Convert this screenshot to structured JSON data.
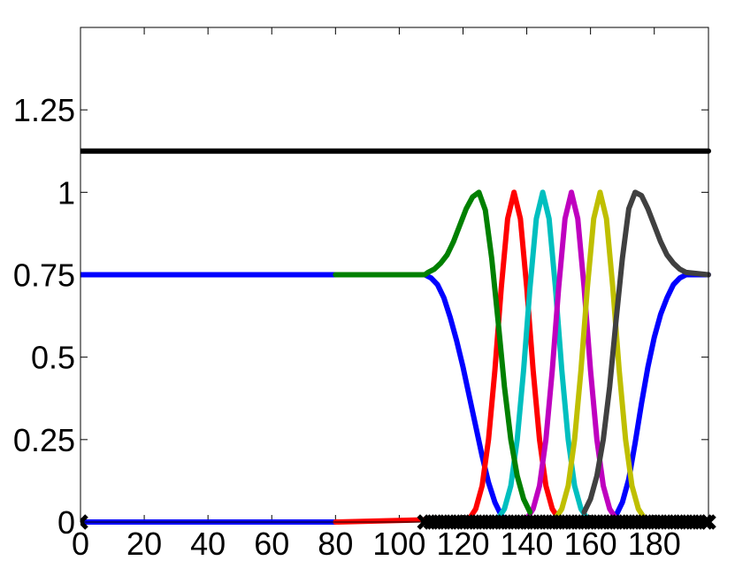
{
  "chart_data": {
    "type": "line",
    "xlim": [
      0,
      197
    ],
    "ylim": [
      0,
      1.5
    ],
    "xticks": [
      0,
      20,
      40,
      60,
      80,
      100,
      120,
      140,
      160,
      180
    ],
    "yticks": [
      0,
      0.25,
      0.5,
      0.75,
      1,
      1.25
    ],
    "series": [
      {
        "color": "#000000",
        "x": [
          0,
          197
        ],
        "values": [
          1.125,
          1.125
        ]
      },
      {
        "color": "#0000ff",
        "x": [
          0,
          108,
          110,
          112,
          114,
          116,
          118,
          120,
          122,
          124,
          126,
          128,
          130,
          132,
          134,
          166,
          168,
          170,
          172,
          174,
          176,
          178,
          180,
          182,
          184,
          186,
          188,
          190,
          197
        ],
        "values": [
          0.75,
          0.75,
          0.74,
          0.72,
          0.68,
          0.62,
          0.55,
          0.47,
          0.38,
          0.29,
          0.2,
          0.12,
          0.06,
          0.02,
          0,
          0,
          0.02,
          0.06,
          0.13,
          0.24,
          0.36,
          0.47,
          0.56,
          0.63,
          0.68,
          0.72,
          0.74,
          0.75,
          0.75
        ]
      },
      {
        "color": "#0000ff",
        "x": [
          0,
          80
        ],
        "values": [
          0,
          0
        ]
      },
      {
        "color": "#ff0000",
        "x": [
          80,
          122,
          124,
          126,
          128,
          130,
          132,
          134,
          136,
          138,
          140,
          142,
          144,
          146,
          148,
          150
        ],
        "values": [
          0,
          0.01,
          0.04,
          0.11,
          0.25,
          0.46,
          0.71,
          0.92,
          1,
          0.92,
          0.71,
          0.46,
          0.25,
          0.11,
          0.04,
          0.01
        ]
      },
      {
        "color": "#00bfbf",
        "x": [
          131,
          133,
          135,
          137,
          139,
          141,
          143,
          145,
          147,
          149,
          151,
          153,
          155,
          157,
          159
        ],
        "values": [
          0.01,
          0.04,
          0.11,
          0.25,
          0.46,
          0.71,
          0.92,
          1,
          0.92,
          0.71,
          0.46,
          0.25,
          0.11,
          0.04,
          0.01
        ]
      },
      {
        "color": "#bf00bf",
        "x": [
          140,
          142,
          144,
          146,
          148,
          150,
          152,
          154,
          156,
          158,
          160,
          162,
          164,
          166,
          168
        ],
        "values": [
          0.01,
          0.04,
          0.11,
          0.25,
          0.46,
          0.71,
          0.92,
          1,
          0.92,
          0.71,
          0.46,
          0.25,
          0.11,
          0.04,
          0.01
        ]
      },
      {
        "color": "#bfbf00",
        "x": [
          149,
          151,
          153,
          155,
          157,
          159,
          161,
          163,
          165,
          167,
          169,
          171,
          173,
          175,
          177
        ],
        "values": [
          0.01,
          0.04,
          0.11,
          0.25,
          0.46,
          0.71,
          0.92,
          1,
          0.92,
          0.71,
          0.46,
          0.25,
          0.11,
          0.04,
          0.01
        ]
      },
      {
        "color": "#404040",
        "x": [
          158,
          160,
          162,
          164,
          166,
          168,
          170,
          172,
          174,
          176,
          178,
          180,
          182,
          184,
          186,
          188,
          190,
          197
        ],
        "values": [
          0.03,
          0.07,
          0.14,
          0.25,
          0.41,
          0.61,
          0.8,
          0.95,
          1,
          0.99,
          0.95,
          0.9,
          0.85,
          0.81,
          0.785,
          0.767,
          0.757,
          0.75
        ]
      },
      {
        "color": "#008000",
        "x": [
          80,
          108,
          109,
          111,
          113,
          115,
          117,
          119,
          121,
          123,
          125,
          127,
          129,
          131,
          133,
          135,
          137,
          139,
          141
        ],
        "values": [
          0.75,
          0.75,
          0.757,
          0.767,
          0.785,
          0.81,
          0.85,
          0.9,
          0.95,
          0.986,
          1,
          0.946,
          0.8,
          0.61,
          0.41,
          0.25,
          0.14,
          0.07,
          0.03
        ]
      },
      {
        "color": "#000000",
        "mode": "markers",
        "x": [
          0,
          108,
          110,
          112,
          114,
          116,
          118,
          120,
          122,
          124,
          126,
          128,
          130,
          132,
          134,
          136,
          138,
          140,
          142,
          144,
          146,
          148,
          150,
          152,
          154,
          156,
          158,
          160,
          162,
          164,
          166,
          168,
          170,
          172,
          174,
          176,
          178,
          180,
          182,
          184,
          186,
          188,
          190,
          192,
          194,
          196,
          197
        ],
        "values": [
          0,
          0,
          0,
          0,
          0,
          0,
          0,
          0,
          0,
          0,
          0,
          0,
          0,
          0,
          0,
          0,
          0,
          0,
          0,
          0,
          0,
          0,
          0,
          0,
          0,
          0,
          0,
          0,
          0,
          0,
          0,
          0,
          0,
          0,
          0,
          0,
          0,
          0,
          0,
          0,
          0,
          0,
          0,
          0,
          0,
          0,
          0
        ]
      }
    ]
  }
}
